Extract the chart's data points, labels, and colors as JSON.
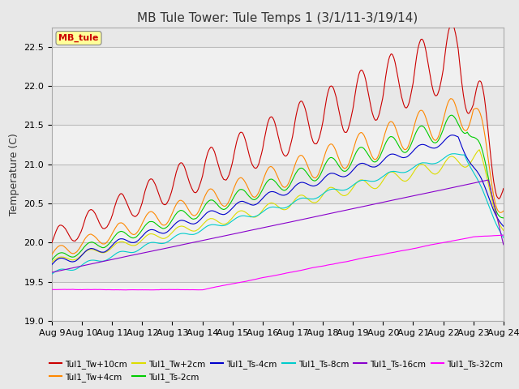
{
  "title": "MB Tule Tower: Tule Temps 1 (3/1/11-3/19/14)",
  "ylabel": "Temperature (C)",
  "ylim": [
    19.0,
    22.75
  ],
  "yticks": [
    19.0,
    19.5,
    20.0,
    20.5,
    21.0,
    21.5,
    22.0,
    22.5
  ],
  "xlim": [
    0,
    15
  ],
  "x_tick_labels": [
    "Aug 9",
    "Aug 10",
    "Aug 11",
    "Aug 12",
    "Aug 13",
    "Aug 14",
    "Aug 15",
    "Aug 16",
    "Aug 17",
    "Aug 18",
    "Aug 19",
    "Aug 20",
    "Aug 21",
    "Aug 22",
    "Aug 23",
    "Aug 24"
  ],
  "legend_label": "MB_tule",
  "series": {
    "Tul1_Tw+10cm": {
      "color": "#cc0000"
    },
    "Tul1_Tw+4cm": {
      "color": "#ff8800"
    },
    "Tul1_Tw+2cm": {
      "color": "#dddd00"
    },
    "Tul1_Ts-2cm": {
      "color": "#00cc00"
    },
    "Tul1_Ts-4cm": {
      "color": "#0000cc"
    },
    "Tul1_Ts-8cm": {
      "color": "#00cccc"
    },
    "Tul1_Ts-16cm": {
      "color": "#8800cc"
    },
    "Tul1_Ts-32cm": {
      "color": "#ff00ff"
    }
  },
  "background_color": "#e8e8e8",
  "grid_color": "#cccccc",
  "title_fontsize": 11,
  "label_fontsize": 9,
  "tick_fontsize": 8
}
